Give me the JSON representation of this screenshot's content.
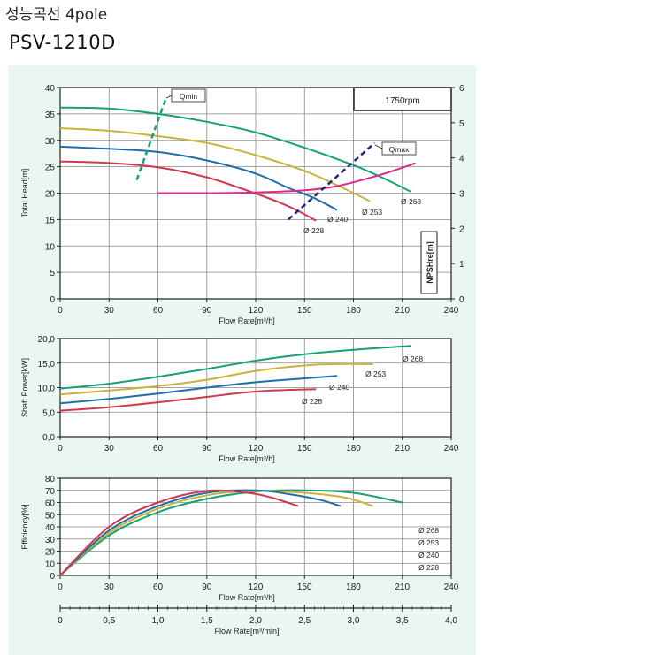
{
  "header": {
    "title": "성능곡선 4pole",
    "model": "PSV-1210D"
  },
  "colors": {
    "d268": "#14a078",
    "d253": "#c8b43a",
    "d240": "#1e6eaa",
    "d228": "#d23750",
    "npsh": "#e0288c",
    "qline": "#14a078",
    "qmax": "#1e2a78",
    "panel": "#e9f6f1"
  },
  "chart_data": [
    {
      "type": "line",
      "name": "head",
      "xlabel": "Flow Rate[m³/h]",
      "ylabel": "Total Head[m]",
      "y2label": "NPSHre[m]",
      "speed_label": "1750rpm",
      "xlim": [
        0,
        240
      ],
      "ylim": [
        0,
        40
      ],
      "y2lim": [
        0,
        6
      ],
      "x_ticks": [
        0,
        30,
        60,
        90,
        120,
        150,
        180,
        210,
        240
      ],
      "y_ticks": [
        0,
        5,
        10,
        15,
        20,
        25,
        30,
        35,
        40
      ],
      "y2_ticks": [
        0,
        1,
        2,
        3,
        4,
        5,
        6
      ],
      "grid": true,
      "series": [
        {
          "name": "Ø 268",
          "key": "d268",
          "x": [
            0,
            30,
            60,
            90,
            120,
            150,
            180,
            200,
            215
          ],
          "y": [
            36.2,
            36.0,
            35.0,
            33.5,
            31.5,
            28.6,
            25.3,
            22.6,
            20.3
          ]
        },
        {
          "name": "Ø 253",
          "key": "d253",
          "x": [
            0,
            30,
            60,
            90,
            120,
            150,
            170,
            190
          ],
          "y": [
            32.3,
            31.8,
            30.8,
            29.5,
            27.2,
            24.2,
            21.5,
            18.5
          ]
        },
        {
          "name": "Ø 240",
          "key": "d240",
          "x": [
            0,
            30,
            60,
            90,
            120,
            140,
            155,
            170
          ],
          "y": [
            28.8,
            28.4,
            27.8,
            26.2,
            23.7,
            21.0,
            19.2,
            16.8
          ]
        },
        {
          "name": "Ø 228",
          "key": "d228",
          "x": [
            0,
            30,
            60,
            90,
            110,
            130,
            145,
            157
          ],
          "y": [
            26.0,
            25.7,
            24.9,
            23.0,
            21.0,
            18.8,
            16.8,
            14.8
          ]
        }
      ],
      "npsh": {
        "x": [
          60,
          90,
          120,
          150,
          170,
          195,
          218
        ],
        "y": [
          3.0,
          3.0,
          3.02,
          3.08,
          3.2,
          3.5,
          3.85
        ]
      },
      "qmin": {
        "label": "Qmin",
        "x": [
          47,
          65
        ],
        "y": [
          22.5,
          38.0
        ]
      },
      "qmax": {
        "label": "Qmax",
        "x": [
          140,
          193
        ],
        "y": [
          15.0,
          29.5
        ]
      },
      "curve_labels": [
        "Ø 268",
        "Ø 253",
        "Ø 240",
        "Ø 228"
      ]
    },
    {
      "type": "line",
      "name": "power",
      "xlabel": "Flow Rate[m³/h]",
      "ylabel": "Shaft Power[kW]",
      "xlim": [
        0,
        240
      ],
      "ylim": [
        0,
        20
      ],
      "x_ticks": [
        0,
        30,
        60,
        90,
        120,
        150,
        180,
        210,
        240
      ],
      "y_tick_labels": [
        "0,0",
        "5,0",
        "10,0",
        "15,0",
        "20,0"
      ],
      "grid": true,
      "series": [
        {
          "name": "Ø 268",
          "key": "d268",
          "x": [
            0,
            30,
            60,
            90,
            120,
            150,
            180,
            215
          ],
          "y": [
            9.8,
            10.8,
            12.2,
            13.8,
            15.5,
            16.8,
            17.7,
            18.5
          ]
        },
        {
          "name": "Ø 253",
          "key": "d253",
          "x": [
            0,
            30,
            60,
            90,
            120,
            150,
            170,
            192
          ],
          "y": [
            8.6,
            9.4,
            10.3,
            11.6,
            13.4,
            14.5,
            14.8,
            14.8
          ]
        },
        {
          "name": "Ø 240",
          "key": "d240",
          "x": [
            0,
            30,
            60,
            90,
            120,
            150,
            170
          ],
          "y": [
            6.8,
            7.7,
            8.8,
            10.0,
            11.1,
            11.9,
            12.4
          ]
        },
        {
          "name": "Ø 228",
          "key": "d228",
          "x": [
            0,
            30,
            60,
            90,
            110,
            130,
            157
          ],
          "y": [
            5.3,
            6.0,
            7.0,
            8.1,
            8.9,
            9.4,
            9.7
          ]
        }
      ],
      "curve_labels": [
        "Ø 268",
        "Ø 253",
        "Ø 240",
        "Ø 228"
      ]
    },
    {
      "type": "line",
      "name": "efficiency",
      "xlabel": "Flow Rate[m³/h]",
      "ylabel": "Efficiency[%]",
      "x2label": "Flow Rate[m³/min]",
      "xlim": [
        0,
        240
      ],
      "ylim": [
        0,
        80
      ],
      "x2lim": [
        0,
        4.0
      ],
      "x_ticks": [
        0,
        30,
        60,
        90,
        120,
        150,
        180,
        210,
        240
      ],
      "y_ticks": [
        0,
        10,
        20,
        30,
        40,
        50,
        60,
        70,
        80
      ],
      "x2_tick_labels": [
        "0",
        "0,5",
        "1,0",
        "1,5",
        "2,0",
        "2,5",
        "3,0",
        "3,5",
        "4,0"
      ],
      "grid": true,
      "series": [
        {
          "name": "Ø 268",
          "key": "d268",
          "x": [
            0,
            30,
            60,
            90,
            120,
            150,
            180,
            210
          ],
          "y": [
            0,
            33,
            52,
            63,
            69,
            70,
            68,
            60
          ]
        },
        {
          "name": "Ø 253",
          "key": "d253",
          "x": [
            0,
            30,
            60,
            90,
            120,
            150,
            175,
            192
          ],
          "y": [
            0,
            35,
            55,
            66,
            69.5,
            68,
            64,
            57
          ]
        },
        {
          "name": "Ø 240",
          "key": "d240",
          "x": [
            0,
            30,
            60,
            90,
            120,
            140,
            160,
            172
          ],
          "y": [
            0,
            37,
            57,
            68,
            70,
            67,
            62,
            57
          ]
        },
        {
          "name": "Ø 228",
          "key": "d228",
          "x": [
            0,
            30,
            60,
            90,
            115,
            130,
            146
          ],
          "y": [
            0,
            40,
            60,
            69.5,
            68,
            64,
            57
          ]
        }
      ],
      "legend": [
        "Ø 268",
        "Ø 253",
        "Ø 240",
        "Ø 228"
      ]
    }
  ]
}
